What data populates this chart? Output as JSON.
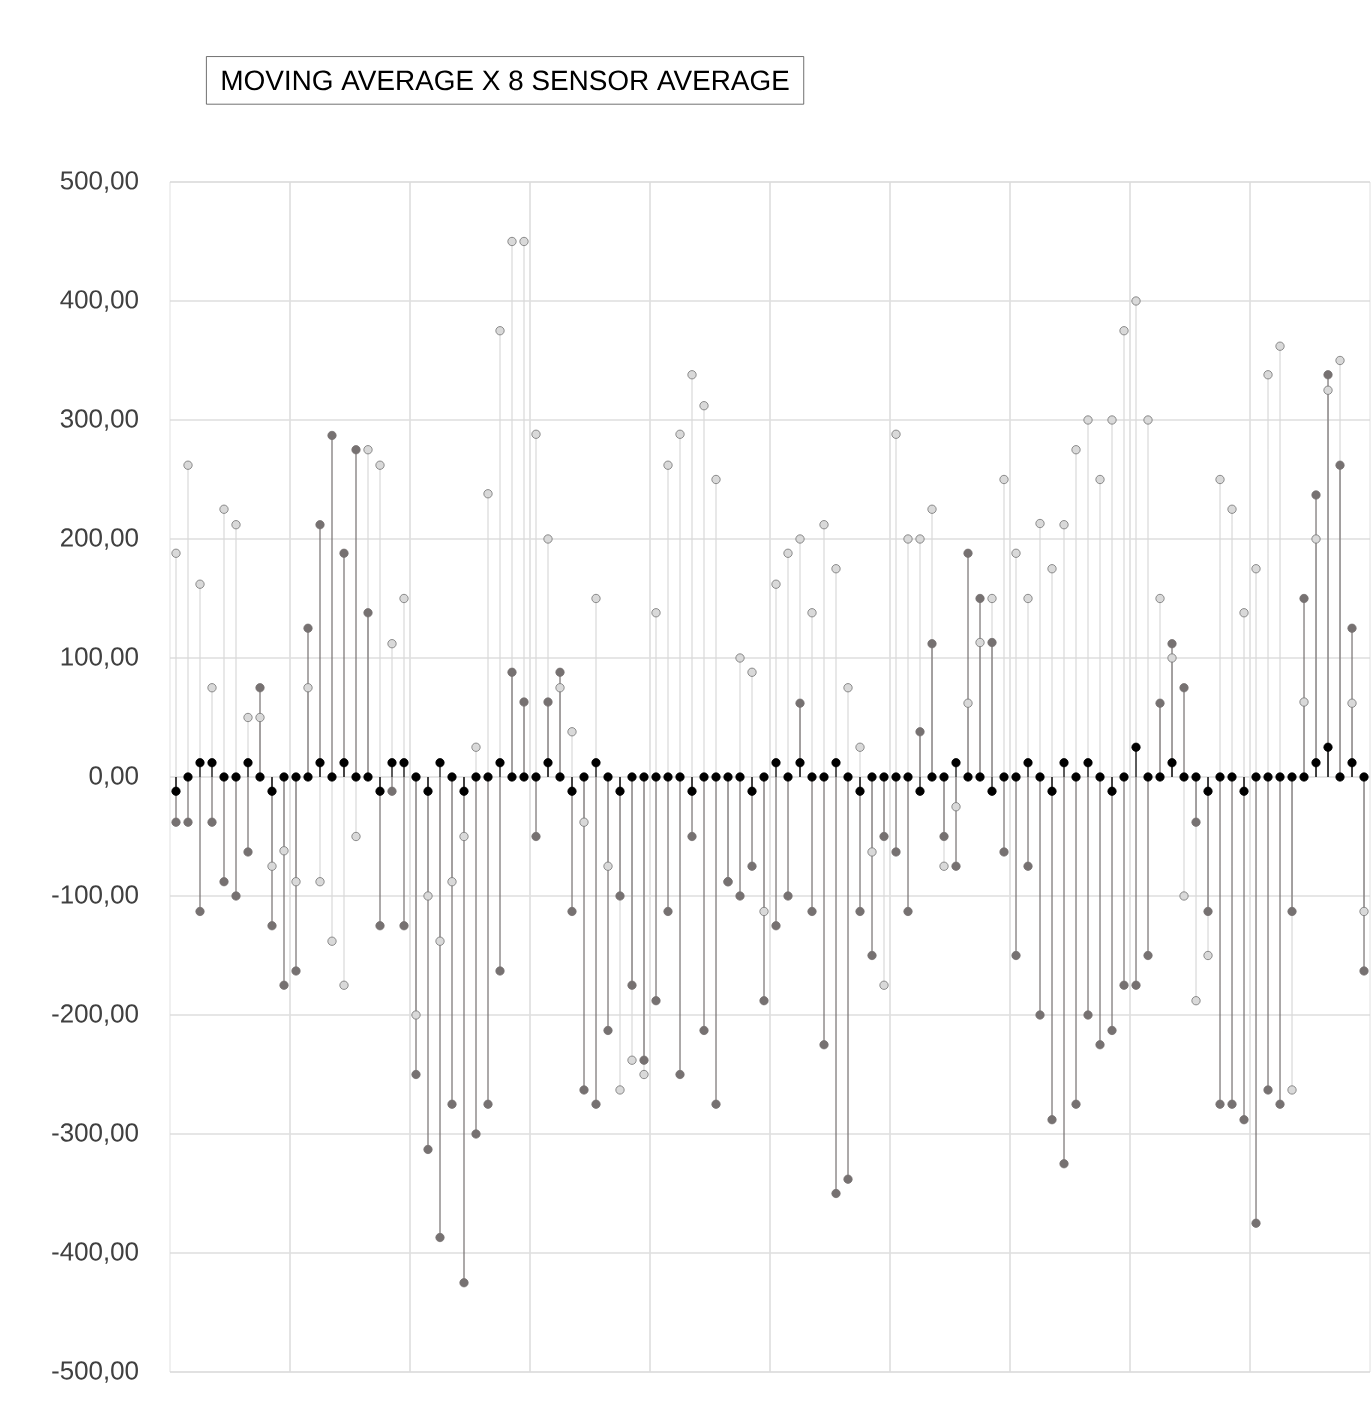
{
  "chart_data": {
    "type": "lollipop",
    "title": "MOVING AVERAGE X 8 SENSOR AVERAGE",
    "categories": [
      null,
      null,
      null,
      null,
      null,
      null,
      null,
      null,
      null,
      null,
      null,
      null,
      null,
      null,
      null,
      null,
      null,
      null,
      null,
      null,
      null,
      null,
      null,
      null,
      null,
      null,
      null,
      null,
      null,
      null,
      null,
      null,
      null,
      null,
      null,
      null,
      null,
      null,
      null,
      null,
      null,
      null,
      null,
      null,
      null,
      null,
      null,
      null,
      null,
      null,
      null,
      null,
      null,
      null,
      null,
      null,
      null,
      null,
      null,
      null,
      null,
      null,
      null,
      null,
      null,
      null,
      null,
      null,
      null,
      null,
      null,
      null,
      null,
      null,
      null,
      null,
      null,
      null,
      null,
      null,
      null,
      null,
      null,
      null,
      null,
      null,
      null,
      null,
      null,
      null,
      null,
      null,
      null,
      null,
      null,
      null,
      null,
      null,
      null,
      null
    ],
    "series": [
      {
        "color": "#d9d9d9",
        "values": [
          188,
          262,
          162,
          75,
          225,
          212,
          50,
          50,
          -75,
          -62,
          -88,
          75,
          -88,
          -138,
          -175,
          -50,
          275,
          262,
          112,
          150,
          -200,
          -100,
          -138,
          -88,
          -50,
          25,
          238,
          375,
          450,
          450,
          288,
          200,
          75,
          38,
          -38,
          150,
          -75,
          -263,
          -238,
          -250,
          138,
          262,
          288,
          338,
          312,
          250,
          -88,
          100,
          88,
          -113,
          162,
          188,
          200,
          138,
          212,
          175,
          75,
          25,
          -63,
          -175,
          288,
          200,
          200,
          225,
          -75,
          -25,
          62,
          113,
          150,
          250,
          188,
          150,
          213,
          175,
          212,
          275,
          300,
          250,
          300,
          375,
          400,
          300,
          150,
          100,
          -100,
          -188,
          -150,
          250,
          225,
          138,
          175,
          338,
          362,
          -263,
          63,
          200,
          325,
          350,
          62,
          -113
        ]
      },
      {
        "color": "#767171",
        "values": [
          -38,
          -38,
          -113,
          -38,
          -88,
          -100,
          -63,
          75,
          -125,
          -175,
          -163,
          125,
          212,
          287,
          188,
          275,
          138,
          -125,
          -12,
          -125,
          -250,
          -313,
          -387,
          -275,
          -425,
          -300,
          -275,
          -163,
          88,
          63,
          -50,
          63,
          88,
          -113,
          -263,
          -275,
          -213,
          -100,
          -175,
          -238,
          -188,
          -113,
          -250,
          -50,
          -213,
          -275,
          -88,
          -100,
          -75,
          -188,
          -125,
          -100,
          62,
          -113,
          -225,
          -350,
          -338,
          -113,
          -150,
          -50,
          -63,
          -113,
          38,
          112,
          -50,
          -75,
          188,
          150,
          113,
          -63,
          -150,
          -75,
          -200,
          -288,
          -325,
          -275,
          -200,
          -225,
          -213,
          -175,
          -175,
          -150,
          62,
          112,
          75,
          -38,
          -113,
          -275,
          -275,
          -288,
          -375,
          -263,
          -275,
          -113,
          150,
          237,
          338,
          262,
          125,
          -163
        ]
      },
      {
        "color": "#000000",
        "values": [
          -12,
          0,
          12,
          12,
          0,
          0,
          12,
          0,
          -12,
          0,
          0,
          0,
          12,
          0,
          12,
          0,
          0,
          -12,
          12,
          12,
          0,
          -12,
          12,
          0,
          -12,
          0,
          0,
          12,
          0,
          0,
          0,
          12,
          0,
          -12,
          0,
          12,
          0,
          -12,
          0,
          0,
          0,
          0,
          0,
          -12,
          0,
          0,
          0,
          0,
          -12,
          0,
          12,
          0,
          12,
          0,
          0,
          12,
          0,
          -12,
          0,
          0,
          0,
          0,
          -12,
          0,
          0,
          12,
          0,
          0,
          -12,
          0,
          0,
          12,
          0,
          -12,
          12,
          0,
          12,
          0,
          -12,
          0,
          25,
          0,
          0,
          12,
          0,
          0,
          -12,
          0,
          0,
          -12,
          0,
          0,
          0,
          0,
          0,
          12,
          25,
          0,
          12,
          0
        ]
      }
    ],
    "ylim": [
      -500,
      500
    ],
    "yticks": [
      {
        "value": -500,
        "label": "-500,00"
      },
      {
        "value": -400,
        "label": "-400,00"
      },
      {
        "value": -300,
        "label": "-300,00"
      },
      {
        "value": -200,
        "label": "-200,00"
      },
      {
        "value": -100,
        "label": "-100,00"
      },
      {
        "value": 0,
        "label": "0,00"
      },
      {
        "value": 100,
        "label": "100,00"
      },
      {
        "value": 200,
        "label": "200,00"
      },
      {
        "value": 300,
        "label": "300,00"
      },
      {
        "value": 400,
        "label": "400,00"
      },
      {
        "value": 500,
        "label": "500,00"
      }
    ],
    "grid": true,
    "marker": "circle"
  }
}
